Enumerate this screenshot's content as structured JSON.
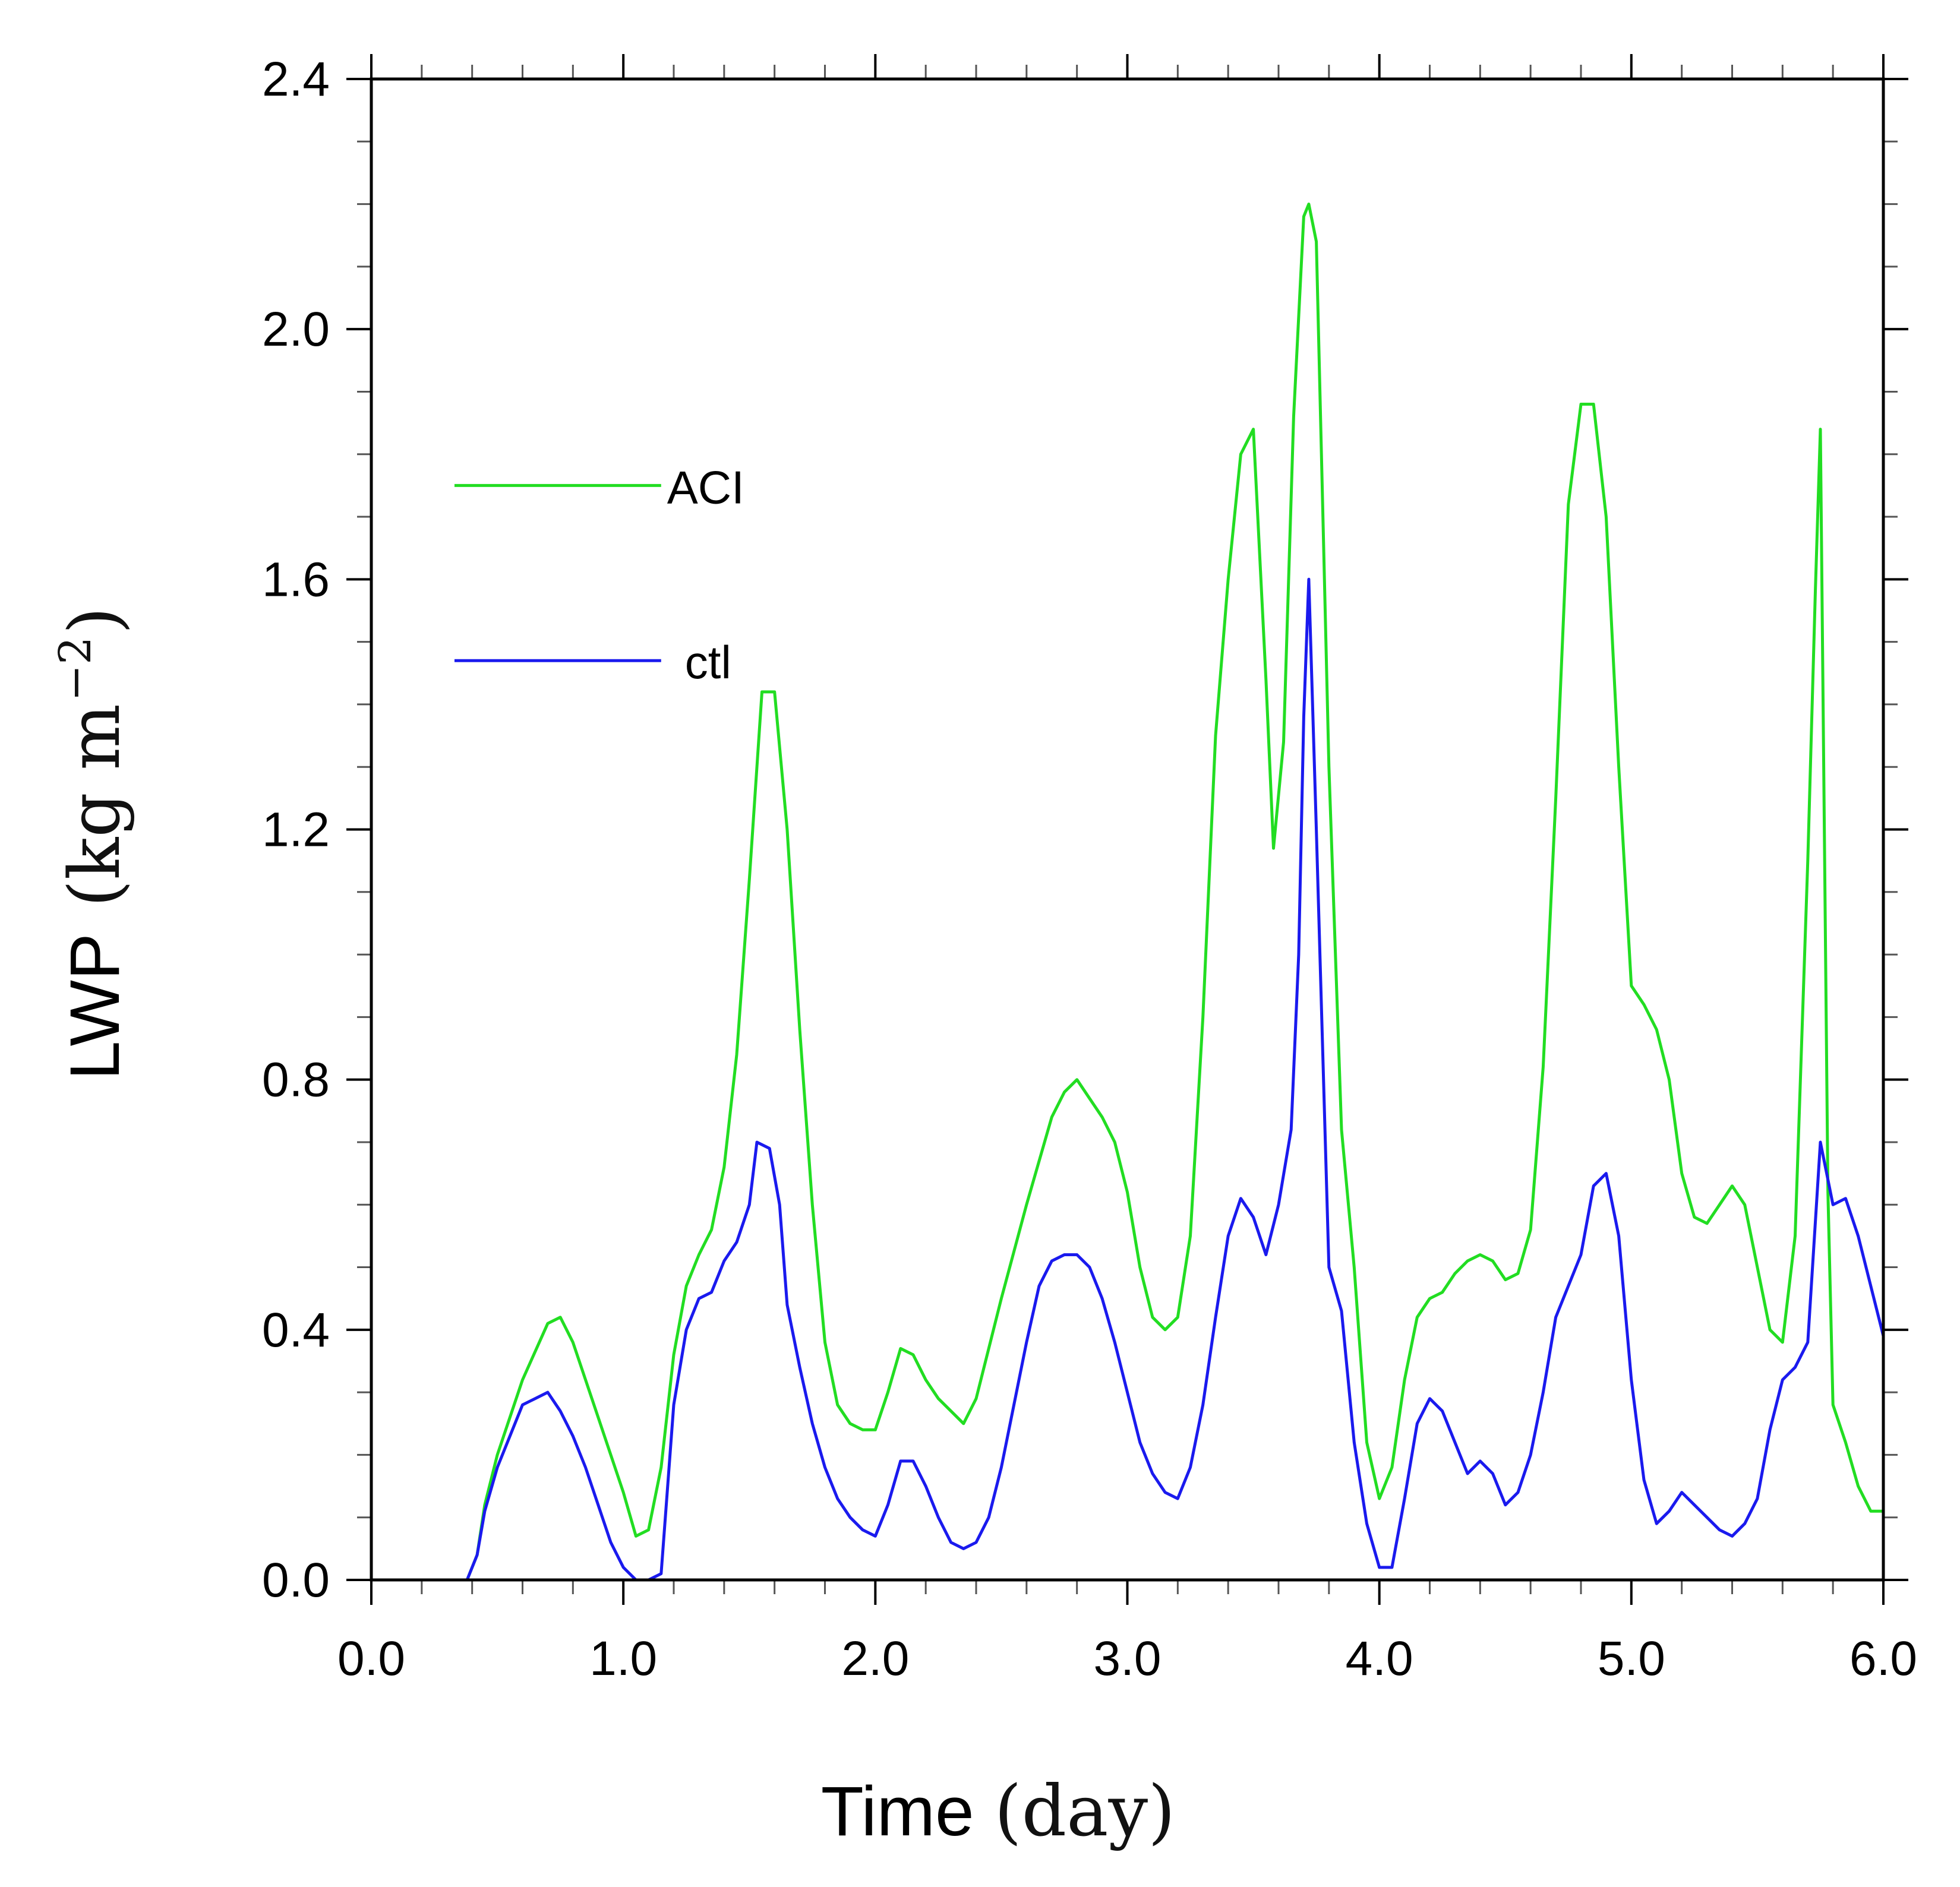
{
  "chart_data": {
    "type": "line",
    "title": "",
    "xlabel": "Time",
    "xlabel_unit": "(day)",
    "ylabel": "LWP",
    "ylabel_unit_open": "(kg m",
    "ylabel_unit_exp": "−2",
    "ylabel_unit_close": ")",
    "xlim": [
      0,
      6
    ],
    "ylim": [
      0,
      2.4
    ],
    "xticks": [
      "0.0",
      "1.0",
      "2.0",
      "3.0",
      "4.0",
      "5.0",
      "6.0"
    ],
    "yticks": [
      "0.0",
      "0.4",
      "0.8",
      "1.2",
      "1.6",
      "2.0",
      "2.4"
    ],
    "legend_position": "upper-left",
    "series": [
      {
        "name": "ACI",
        "color": "#22dd22",
        "x": [
          0.0,
          0.2,
          0.38,
          0.42,
          0.45,
          0.5,
          0.6,
          0.7,
          0.75,
          0.8,
          0.9,
          1.0,
          1.05,
          1.1,
          1.15,
          1.2,
          1.25,
          1.3,
          1.35,
          1.4,
          1.45,
          1.5,
          1.55,
          1.6,
          1.65,
          1.7,
          1.75,
          1.8,
          1.85,
          1.9,
          1.95,
          2.0,
          2.05,
          2.1,
          2.15,
          2.2,
          2.25,
          2.3,
          2.35,
          2.4,
          2.5,
          2.6,
          2.7,
          2.75,
          2.8,
          2.85,
          2.9,
          2.95,
          3.0,
          3.05,
          3.1,
          3.15,
          3.2,
          3.25,
          3.3,
          3.35,
          3.4,
          3.45,
          3.5,
          3.55,
          3.58,
          3.62,
          3.66,
          3.7,
          3.72,
          3.75,
          3.8,
          3.85,
          3.9,
          3.95,
          4.0,
          4.05,
          4.1,
          4.15,
          4.2,
          4.25,
          4.3,
          4.35,
          4.4,
          4.45,
          4.5,
          4.55,
          4.6,
          4.65,
          4.7,
          4.75,
          4.8,
          4.85,
          4.9,
          4.95,
          5.0,
          5.05,
          5.1,
          5.15,
          5.2,
          5.25,
          5.3,
          5.35,
          5.4,
          5.45,
          5.5,
          5.55,
          5.6,
          5.65,
          5.7,
          5.73,
          5.75,
          5.78,
          5.8,
          5.85,
          5.9,
          5.95,
          6.0
        ],
        "y": [
          0.0,
          0.0,
          0.0,
          0.04,
          0.12,
          0.2,
          0.32,
          0.41,
          0.42,
          0.38,
          0.26,
          0.14,
          0.07,
          0.08,
          0.18,
          0.36,
          0.47,
          0.52,
          0.56,
          0.66,
          0.84,
          1.12,
          1.42,
          1.42,
          1.2,
          0.88,
          0.6,
          0.38,
          0.28,
          0.25,
          0.24,
          0.24,
          0.3,
          0.37,
          0.36,
          0.32,
          0.29,
          0.27,
          0.25,
          0.29,
          0.45,
          0.6,
          0.74,
          0.78,
          0.8,
          0.77,
          0.74,
          0.7,
          0.62,
          0.5,
          0.42,
          0.4,
          0.42,
          0.55,
          0.9,
          1.35,
          1.6,
          1.8,
          1.84,
          1.44,
          1.17,
          1.34,
          1.86,
          2.18,
          2.2,
          2.14,
          1.3,
          0.72,
          0.5,
          0.22,
          0.13,
          0.18,
          0.32,
          0.42,
          0.45,
          0.46,
          0.49,
          0.51,
          0.52,
          0.51,
          0.48,
          0.49,
          0.56,
          0.82,
          1.25,
          1.72,
          1.88,
          1.88,
          1.7,
          1.3,
          0.95,
          0.92,
          0.88,
          0.8,
          0.65,
          0.58,
          0.57,
          0.6,
          0.63,
          0.6,
          0.5,
          0.4,
          0.38,
          0.55,
          1.15,
          1.58,
          1.84,
          0.62,
          0.28,
          0.22,
          0.15,
          0.11,
          0.11
        ]
      },
      {
        "name": "ctl",
        "color": "#1a1aee",
        "x": [
          0.0,
          0.2,
          0.38,
          0.42,
          0.45,
          0.5,
          0.55,
          0.6,
          0.65,
          0.7,
          0.75,
          0.8,
          0.85,
          0.9,
          0.95,
          1.0,
          1.05,
          1.1,
          1.15,
          1.2,
          1.25,
          1.3,
          1.35,
          1.4,
          1.45,
          1.5,
          1.53,
          1.58,
          1.62,
          1.65,
          1.7,
          1.75,
          1.8,
          1.85,
          1.9,
          1.95,
          2.0,
          2.05,
          2.1,
          2.15,
          2.2,
          2.25,
          2.3,
          2.35,
          2.4,
          2.45,
          2.5,
          2.55,
          2.6,
          2.65,
          2.7,
          2.75,
          2.8,
          2.85,
          2.9,
          2.95,
          3.0,
          3.05,
          3.1,
          3.15,
          3.2,
          3.25,
          3.3,
          3.35,
          3.4,
          3.45,
          3.5,
          3.55,
          3.6,
          3.65,
          3.68,
          3.7,
          3.72,
          3.75,
          3.8,
          3.85,
          3.9,
          3.95,
          4.0,
          4.05,
          4.1,
          4.15,
          4.2,
          4.25,
          4.3,
          4.35,
          4.4,
          4.45,
          4.5,
          4.55,
          4.6,
          4.65,
          4.7,
          4.75,
          4.8,
          4.85,
          4.9,
          4.95,
          5.0,
          5.05,
          5.1,
          5.15,
          5.2,
          5.25,
          5.3,
          5.35,
          5.4,
          5.45,
          5.5,
          5.55,
          5.6,
          5.65,
          5.7,
          5.75,
          5.8,
          5.85,
          5.9,
          5.95,
          6.0
        ],
        "y": [
          0.0,
          0.0,
          0.0,
          0.04,
          0.11,
          0.18,
          0.23,
          0.28,
          0.29,
          0.3,
          0.27,
          0.23,
          0.18,
          0.12,
          0.06,
          0.02,
          0.0,
          0.0,
          0.01,
          0.28,
          0.4,
          0.45,
          0.46,
          0.51,
          0.54,
          0.6,
          0.7,
          0.69,
          0.6,
          0.44,
          0.34,
          0.25,
          0.18,
          0.13,
          0.1,
          0.08,
          0.07,
          0.12,
          0.19,
          0.19,
          0.15,
          0.1,
          0.06,
          0.05,
          0.06,
          0.1,
          0.18,
          0.28,
          0.38,
          0.47,
          0.51,
          0.52,
          0.52,
          0.5,
          0.45,
          0.38,
          0.3,
          0.22,
          0.17,
          0.14,
          0.13,
          0.18,
          0.28,
          0.42,
          0.55,
          0.61,
          0.58,
          0.52,
          0.6,
          0.72,
          1.0,
          1.38,
          1.6,
          1.2,
          0.5,
          0.43,
          0.22,
          0.09,
          0.02,
          0.02,
          0.13,
          0.25,
          0.29,
          0.27,
          0.22,
          0.17,
          0.19,
          0.17,
          0.12,
          0.14,
          0.2,
          0.3,
          0.42,
          0.47,
          0.52,
          0.63,
          0.65,
          0.55,
          0.32,
          0.16,
          0.09,
          0.11,
          0.14,
          0.12,
          0.1,
          0.08,
          0.07,
          0.09,
          0.13,
          0.24,
          0.32,
          0.34,
          0.38,
          0.7,
          0.6,
          0.61,
          0.55,
          0.47,
          0.39
        ]
      }
    ]
  }
}
